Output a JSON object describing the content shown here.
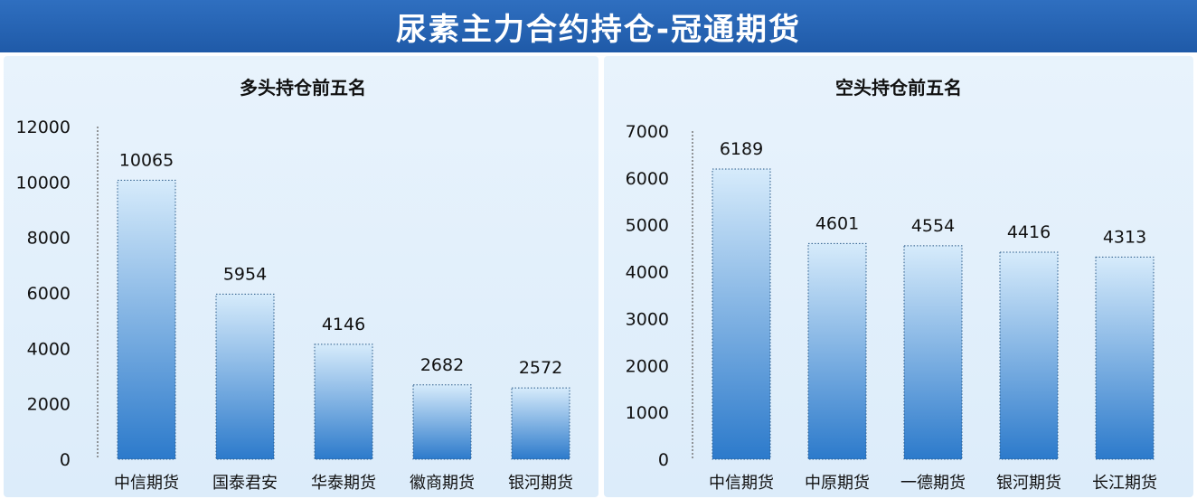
{
  "banner": {
    "title": "尿素主力合约持仓-冠通期货"
  },
  "chart_data": [
    {
      "type": "bar",
      "title": "多头持仓前五名",
      "categories": [
        "中信期货",
        "国泰君安",
        "华泰期货",
        "徽商期货",
        "银河期货"
      ],
      "values": [
        10065,
        5954,
        4146,
        2682,
        2572
      ],
      "ylim": [
        0,
        12000
      ],
      "yticks": [
        0,
        2000,
        4000,
        6000,
        8000,
        10000,
        12000
      ],
      "grid": false,
      "legend": "none",
      "xlabel": "",
      "ylabel": ""
    },
    {
      "type": "bar",
      "title": "空头持仓前五名",
      "categories": [
        "中信期货",
        "中原期货",
        "一德期货",
        "银河期货",
        "长江期货"
      ],
      "values": [
        6189,
        4601,
        4554,
        4416,
        4313
      ],
      "ylim": [
        0,
        7000
      ],
      "yticks": [
        0,
        1000,
        2000,
        3000,
        4000,
        5000,
        6000,
        7000
      ],
      "grid": false,
      "legend": "none",
      "xlabel": "",
      "ylabel": ""
    }
  ],
  "colors": {
    "banner": "#2463b3",
    "bar_top": "#d6ebfb",
    "bar_bottom": "#2c7acb"
  }
}
